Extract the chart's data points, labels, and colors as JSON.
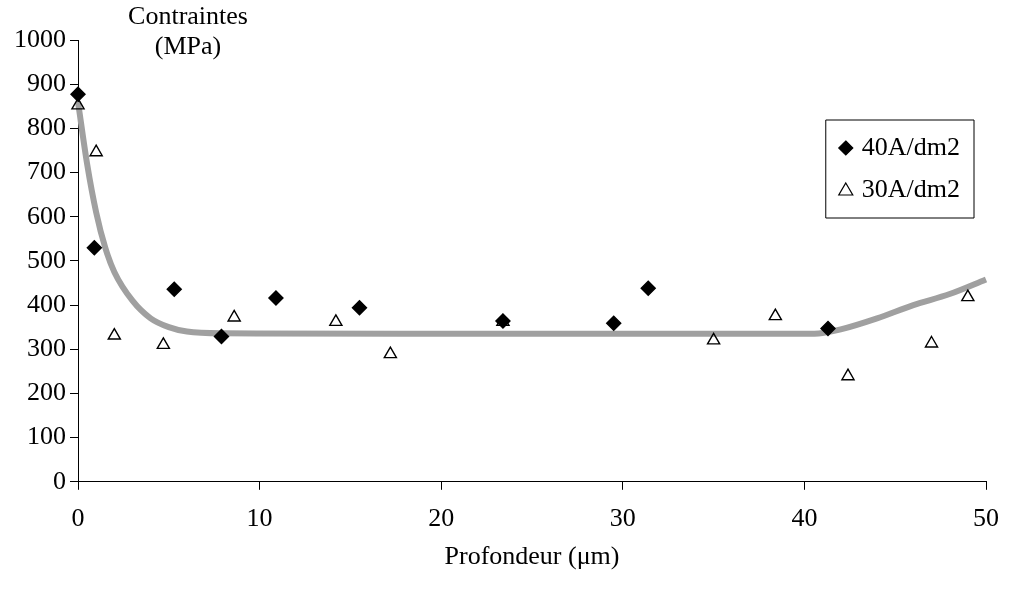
{
  "chart_data": {
    "type": "scatter",
    "ylabel": "Contraintes (MPa)",
    "xlabel": "Profondeur (μm)",
    "xlim": [
      0,
      50
    ],
    "xticks": [
      0,
      10,
      20,
      30,
      40,
      50
    ],
    "ylim": [
      0,
      1000
    ],
    "yticks": [
      0,
      100,
      200,
      300,
      400,
      500,
      600,
      700,
      800,
      900,
      1000
    ],
    "grid": false,
    "legend": "top right",
    "series": [
      {
        "name": "40A/dm2",
        "type": "scatter",
        "marker": "diamond",
        "color": "#000000",
        "x": [
          0,
          0.9,
          5.3,
          7.9,
          10.9,
          15.5,
          23.4,
          29.5,
          31.4,
          41.3
        ],
        "values": [
          877,
          530,
          436,
          329,
          416,
          394,
          364,
          359,
          438,
          347
        ]
      },
      {
        "name": "30A/dm2",
        "type": "scatter",
        "marker": "triangle",
        "color": "#000000",
        "x": [
          0,
          1,
          2,
          4.7,
          8.6,
          14.2,
          17.2,
          23.4,
          35,
          38.4,
          42.4,
          47,
          49
        ],
        "values": [
          852,
          746,
          331,
          310,
          372,
          362,
          289,
          362,
          320,
          375,
          239,
          313,
          418
        ]
      },
      {
        "type": "line",
        "marker": "none",
        "color": "#a0a0a0",
        "x": [
          0,
          0.5,
          1,
          1.5,
          2,
          3,
          4,
          5,
          6,
          8,
          20,
          40,
          41,
          42,
          44,
          46,
          48,
          50
        ],
        "values": [
          860,
          720,
          610,
          530,
          475,
          410,
          370,
          350,
          340,
          336,
          335,
          335,
          337,
          345,
          370,
          400,
          425,
          458
        ]
      }
    ]
  }
}
